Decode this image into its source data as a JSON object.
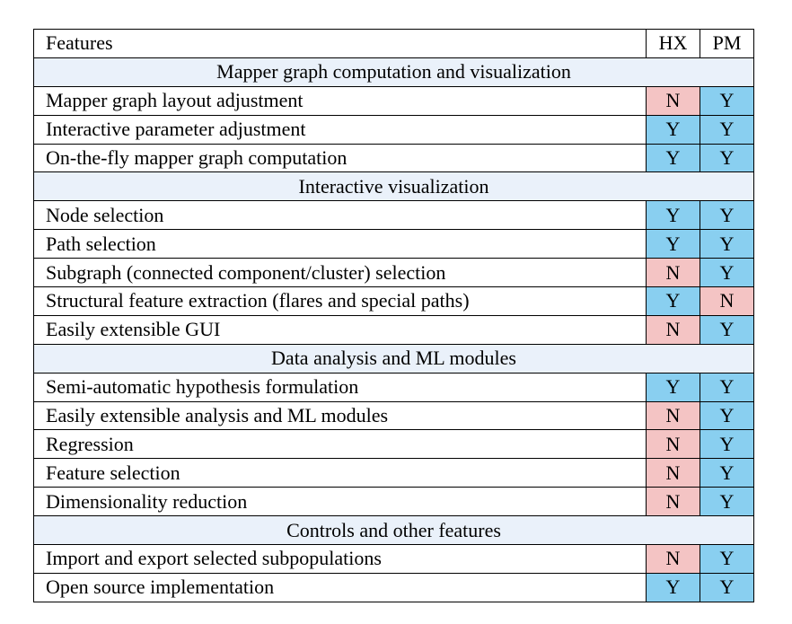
{
  "table": {
    "header": [
      "Features",
      "HX",
      "PM"
    ],
    "cell_colors": {
      "Y": "#89cff0",
      "N": "#f4c4c4"
    },
    "sections": [
      {
        "title": "Mapper graph computation and visualization",
        "rows": [
          [
            "Mapper graph layout adjustment",
            "N",
            "Y"
          ],
          [
            "Interactive parameter adjustment",
            "Y",
            "Y"
          ],
          [
            "On-the-fly mapper graph computation",
            "Y",
            "Y"
          ]
        ]
      },
      {
        "title": "Interactive visualization",
        "rows": [
          [
            "Node selection",
            "Y",
            "Y"
          ],
          [
            "Path selection",
            "Y",
            "Y"
          ],
          [
            "Subgraph (connected component/cluster) selection",
            "N",
            "Y"
          ],
          [
            "Structural feature extraction (flares and special paths)",
            "Y",
            "N"
          ],
          [
            "Easily extensible GUI",
            "N",
            "Y"
          ]
        ]
      },
      {
        "title": "Data analysis and ML modules",
        "rows": [
          [
            "Semi-automatic hypothesis formulation",
            "Y",
            "Y"
          ],
          [
            "Easily extensible analysis and ML modules",
            "N",
            "Y"
          ],
          [
            "Regression",
            "N",
            "Y"
          ],
          [
            "Feature selection",
            "N",
            "Y"
          ],
          [
            "Dimensionality reduction",
            "N",
            "Y"
          ]
        ]
      },
      {
        "title": "Controls and other features",
        "rows": [
          [
            "Import and export selected subpopulations",
            "N",
            "Y"
          ],
          [
            "Open source implementation",
            "Y",
            "Y"
          ]
        ]
      }
    ]
  }
}
